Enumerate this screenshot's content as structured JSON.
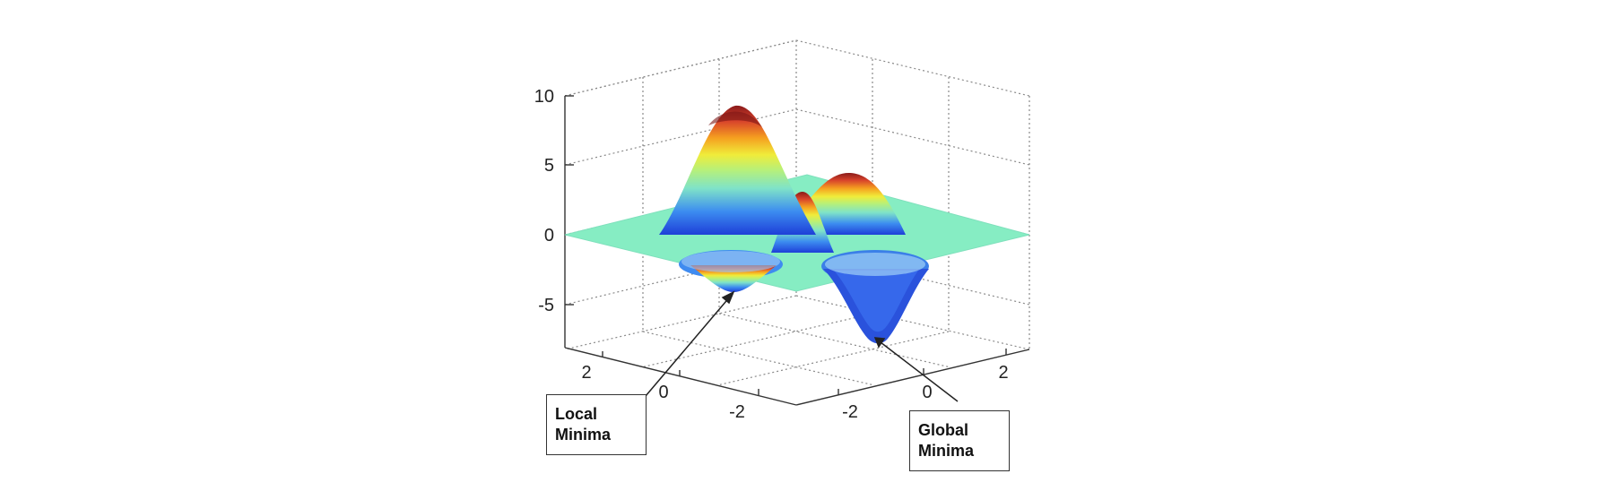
{
  "chart_data": {
    "type": "surface",
    "title": "",
    "xlabel": "",
    "ylabel": "",
    "zlabel": "",
    "x_range": [
      -3,
      3
    ],
    "y_range": [
      -3,
      3
    ],
    "z_range": [
      -7,
      10
    ],
    "x_ticks": [
      "-2",
      "0",
      "2"
    ],
    "y_ticks": [
      "-2",
      "0",
      "2"
    ],
    "z_ticks": [
      "-5",
      "0",
      "5",
      "10"
    ],
    "grid": true,
    "colormap": "jet",
    "features": [
      {
        "kind": "peak",
        "x": -1.5,
        "y": 1.2,
        "z": 9
      },
      {
        "kind": "peak",
        "x": 0.2,
        "y": -1.4,
        "z": 3.5
      },
      {
        "kind": "peak",
        "x": -0.2,
        "y": 0.1,
        "z": 2.5
      },
      {
        "kind": "minimum",
        "x": -0.2,
        "y": 2.3,
        "z": -3.8
      },
      {
        "kind": "minimum",
        "x": 2.2,
        "y": 0.3,
        "z": -7.5
      }
    ],
    "annotations": [
      {
        "text": "Local\nMinima",
        "target": "minimum-local"
      },
      {
        "text": "Global\nMinima",
        "target": "minimum-global"
      }
    ]
  }
}
